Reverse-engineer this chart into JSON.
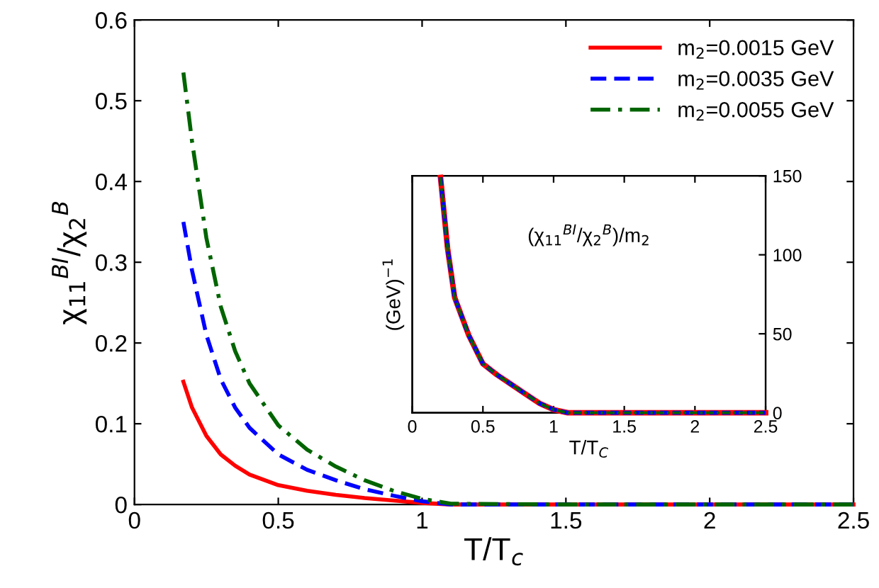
{
  "chart_data": [
    {
      "type": "line",
      "xlabel": "T/T$_{c}$",
      "ylabel": "χ$_{11}$$^{BI}$/χ$_{2}$$^{B}$",
      "xlim": [
        0,
        2.5
      ],
      "ylim": [
        0,
        0.6
      ],
      "xticks": [
        0,
        0.5,
        1,
        1.5,
        2,
        2.5
      ],
      "yticks": [
        0,
        0.1,
        0.2,
        0.3,
        0.4,
        0.5,
        0.6
      ],
      "grid": false,
      "legend": "top right",
      "marker": "none",
      "x": [
        0.17,
        0.2,
        0.25,
        0.3,
        0.35,
        0.4,
        0.5,
        0.6,
        0.7,
        0.8,
        0.9,
        1.0,
        1.1,
        1.5,
        2.0,
        2.5
      ],
      "series": [
        {
          "name": "m$_{2}$=0.0015 GeV",
          "color": "#ff0000",
          "line_style": "solid",
          "values": [
            0.152,
            0.12,
            0.085,
            0.062,
            0.048,
            0.037,
            0.024,
            0.017,
            0.012,
            0.008,
            0.005,
            0.002,
            0,
            0,
            0,
            0
          ]
        },
        {
          "name": "m$_{2}$=0.0035 GeV",
          "color": "#0000ff",
          "line_style": "dashed",
          "values": [
            0.35,
            0.29,
            0.21,
            0.155,
            0.12,
            0.095,
            0.062,
            0.043,
            0.03,
            0.019,
            0.011,
            0.004,
            0,
            0,
            0,
            0
          ]
        },
        {
          "name": "m$_{2}$=0.0055 GeV",
          "color": "#006400",
          "line_style": "dashdot",
          "values": [
            0.535,
            0.45,
            0.33,
            0.245,
            0.19,
            0.15,
            0.098,
            0.068,
            0.047,
            0.03,
            0.017,
            0.007,
            0.001,
            0,
            0,
            0
          ]
        }
      ]
    },
    {
      "type": "line",
      "xlabel": "T/T$_{C}$",
      "ylabel": "(GeV)$^{−1}$",
      "xlim": [
        0,
        2.5
      ],
      "xticks": [
        0,
        0.5,
        1,
        1.5,
        2,
        2.5
      ],
      "y2lim": [
        0,
        150
      ],
      "y2ticks": [
        0,
        50,
        100,
        150
      ],
      "grid": false,
      "marker": "none",
      "annotations": [
        "(χ$_{11}$$^{BI}$/χ$_{2}$$^{B}$)/m$_{2}$"
      ],
      "x": [
        0.2,
        0.25,
        0.3,
        0.4,
        0.5,
        0.6,
        0.7,
        0.8,
        0.9,
        1.0,
        1.1,
        1.5,
        2.0,
        2.5
      ],
      "series": [
        {
          "color": "#ff0000",
          "line_style": "solid",
          "axis": "y2",
          "values": [
            149,
            104,
            73,
            49,
            31,
            24,
            18,
            12,
            6,
            2,
            0,
            0,
            0,
            0
          ]
        },
        {
          "color": "#0000ff",
          "line_style": "dashed",
          "axis": "y2",
          "values": [
            149,
            104,
            73,
            49,
            31,
            24,
            18,
            12,
            6,
            2,
            0,
            0,
            0,
            0
          ]
        },
        {
          "color": "#006400",
          "line_style": "dashdot",
          "axis": "y2",
          "values": [
            149,
            104,
            73,
            49,
            31,
            24,
            18,
            12,
            6,
            2,
            0,
            0,
            0,
            0
          ]
        }
      ]
    }
  ]
}
